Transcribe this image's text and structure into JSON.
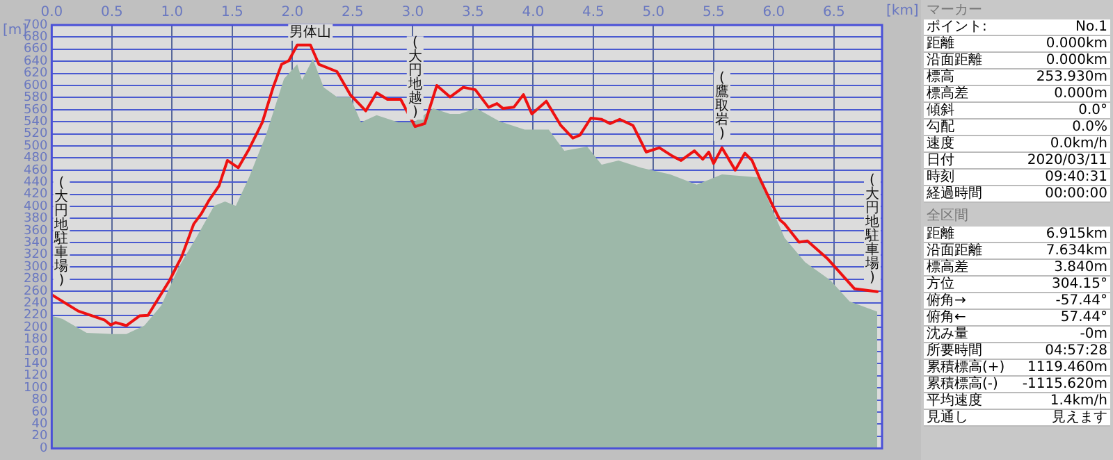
{
  "chart_data": [
    {
      "type": "line",
      "xlabel": "[km]",
      "ylabel": "[m]",
      "xlim": [
        0,
        6.9
      ],
      "ylim": [
        0,
        700
      ],
      "xticks": [
        {
          "value": 0,
          "label": "0.0"
        },
        {
          "value": 0.5,
          "label": "0.5"
        },
        {
          "value": 1,
          "label": "1.0"
        },
        {
          "value": 1.5,
          "label": "1.5"
        },
        {
          "value": 2,
          "label": "2.0"
        },
        {
          "value": 2.5,
          "label": "2.5"
        },
        {
          "value": 3,
          "label": "3.0"
        },
        {
          "value": 3.5,
          "label": "3.5"
        },
        {
          "value": 4,
          "label": "4.0"
        },
        {
          "value": 4.5,
          "label": "4.5"
        },
        {
          "value": 5,
          "label": "5.0"
        },
        {
          "value": 5.5,
          "label": "5.5"
        },
        {
          "value": 6,
          "label": "6.0"
        },
        {
          "value": 6.5,
          "label": "6.5"
        }
      ],
      "yticks": [
        0,
        20,
        40,
        60,
        80,
        100,
        120,
        140,
        160,
        180,
        200,
        220,
        240,
        260,
        280,
        300,
        320,
        340,
        360,
        380,
        400,
        420,
        440,
        460,
        480,
        500,
        520,
        540,
        560,
        580,
        600,
        620,
        640,
        660,
        680,
        700
      ],
      "grid": true,
      "marker": "none",
      "line_style": "solid",
      "series": [
        {
          "type": "area",
          "color": "#9db8a9",
          "x": [
            0,
            0.09,
            0.29,
            0.51,
            0.62,
            0.77,
            0.91,
            1.06,
            1.2,
            1.35,
            1.44,
            1.53,
            1.64,
            1.78,
            1.93,
            2.04,
            2.08,
            2.17,
            2.26,
            2.37,
            2.48,
            2.57,
            2.7,
            2.88,
            3.01,
            3.17,
            3.31,
            3.39,
            3.53,
            3.72,
            3.93,
            4.13,
            4.26,
            4.45,
            4.57,
            4.71,
            4.9,
            5.14,
            5.36,
            5.57,
            5.87,
            5.99,
            6.09,
            6.26,
            6.47,
            6.63,
            6.86
          ],
          "values": [
            219,
            214,
            191,
            189,
            189,
            203,
            236,
            301,
            348,
            401,
            408,
            401,
            448,
            518,
            611,
            635,
            609,
            644,
            597,
            581,
            581,
            539,
            551,
            539,
            539,
            562,
            553,
            553,
            562,
            541,
            527,
            527,
            492,
            499,
            469,
            476,
            464,
            453,
            436,
            453,
            448,
            394,
            348,
            308,
            278,
            243,
            226
          ]
        },
        {
          "type": "line",
          "color": "#ee1111",
          "x": [
            0,
            0.22,
            0.44,
            0.49,
            0.53,
            0.62,
            0.73,
            0.8,
            0.98,
            1.08,
            1.18,
            1.24,
            1.31,
            1.39,
            1.46,
            1.55,
            1.64,
            1.75,
            1.84,
            1.91,
            1.97,
            2.04,
            2.15,
            2.22,
            2.37,
            2.48,
            2.61,
            2.7,
            2.79,
            2.9,
            3.02,
            3.1,
            3.2,
            3.31,
            3.42,
            3.52,
            3.63,
            3.7,
            3.75,
            3.84,
            3.92,
            3.99,
            4.11,
            4.23,
            4.33,
            4.39,
            4.48,
            4.57,
            4.64,
            4.72,
            4.83,
            4.94,
            5.05,
            5.16,
            5.23,
            5.34,
            5.41,
            5.46,
            5.5,
            5.57,
            5.68,
            5.76,
            5.82,
            5.88,
            5.98,
            6.05,
            6.09,
            6.21,
            6.28,
            6.45,
            6.67,
            6.86
          ],
          "values": [
            254,
            227,
            212,
            204,
            208,
            203,
            219,
            220,
            278,
            317,
            371,
            387,
            411,
            434,
            476,
            464,
            495,
            539,
            597,
            635,
            641,
            667,
            667,
            635,
            623,
            585,
            558,
            588,
            577,
            577,
            532,
            537,
            600,
            581,
            597,
            593,
            564,
            570,
            562,
            564,
            585,
            553,
            574,
            534,
            513,
            518,
            546,
            544,
            537,
            544,
            534,
            490,
            497,
            483,
            476,
            492,
            478,
            490,
            471,
            497,
            460,
            488,
            476,
            448,
            406,
            378,
            371,
            341,
            343,
            313,
            264,
            259
          ]
        }
      ],
      "annotations": [
        {
          "text": "(大円地駐車場)",
          "x": 0,
          "y": 254
        },
        {
          "text": "男体山",
          "x": 2.15,
          "y": 667
        },
        {
          "text": "(大円地越)",
          "x": 3.02,
          "y": 532
        },
        {
          "text": "(鷹取岩)",
          "x": 5.57,
          "y": 497
        },
        {
          "text": "(大円地駐車場)",
          "x": 6.86,
          "y": 259
        }
      ]
    },
    {
      "type": "other",
      "title": "マーカー",
      "annotations": [
        "ポイント: No.1",
        "距離 0.000km",
        "沿面距離 0.000km",
        "標高 253.930m",
        "標高差 0.000m",
        "傾斜 0.0°",
        "勾配 0.0%",
        "速度 0.0km/h",
        "日付 2020/03/11",
        "時刻 09:40:31",
        "経過時間 00:00:00",
        "全区間",
        "距離 6.915km",
        "沿面距離 7.634km",
        "標高差 3.840m",
        "方位 304.15°",
        "俯角→ -57.44°",
        "俯角← 57.44°",
        "沈み量 -0m",
        "所要時間 04:57:28",
        "累積標高(+) 1119.460m",
        "累積標高(-) -1115.620m",
        "平均速度 1.4km/h",
        "見通し 見えます"
      ]
    }
  ]
}
